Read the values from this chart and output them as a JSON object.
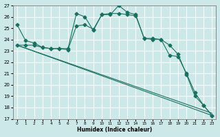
{
  "xlabel": "Humidex (Indice chaleur)",
  "bg_color": "#cde8e8",
  "grid_color": "#ffffff",
  "line_color": "#1a7060",
  "xlim": [
    -0.5,
    23.5
  ],
  "ylim": [
    17,
    27
  ],
  "yticks": [
    17,
    18,
    19,
    20,
    21,
    22,
    23,
    24,
    25,
    26,
    27
  ],
  "xticks": [
    0,
    1,
    2,
    3,
    4,
    5,
    6,
    7,
    8,
    9,
    10,
    11,
    12,
    13,
    14,
    15,
    16,
    17,
    18,
    19,
    20,
    21,
    22,
    23
  ],
  "line1_x": [
    0,
    1,
    2,
    3,
    4,
    5,
    6,
    7,
    8,
    9,
    10,
    11,
    12,
    13,
    14,
    15,
    16,
    17,
    18,
    19,
    20,
    21,
    22,
    23
  ],
  "line1_y": [
    25.3,
    23.9,
    23.7,
    23.3,
    23.2,
    23.2,
    23.2,
    26.3,
    26.0,
    24.8,
    26.2,
    26.2,
    27.0,
    26.4,
    26.2,
    24.1,
    24.0,
    24.0,
    23.5,
    22.7,
    20.9,
    19.0,
    18.2,
    17.3
  ],
  "line2_x": [
    0,
    1,
    2,
    3,
    4,
    5,
    6,
    7,
    8,
    9,
    10,
    11,
    12,
    13,
    14,
    15,
    16,
    17,
    18,
    19,
    20,
    21,
    22,
    23
  ],
  "line2_y": [
    23.5,
    23.5,
    23.5,
    23.3,
    23.2,
    23.2,
    23.1,
    25.2,
    25.3,
    24.9,
    26.2,
    26.3,
    26.3,
    26.2,
    26.1,
    24.1,
    24.1,
    24.0,
    22.6,
    22.5,
    21.0,
    19.3,
    18.2,
    17.3
  ],
  "line3_x": [
    0,
    23
  ],
  "line3_y": [
    23.5,
    17.3
  ],
  "line4_x": [
    0,
    23
  ],
  "line4_y": [
    23.5,
    17.5
  ]
}
